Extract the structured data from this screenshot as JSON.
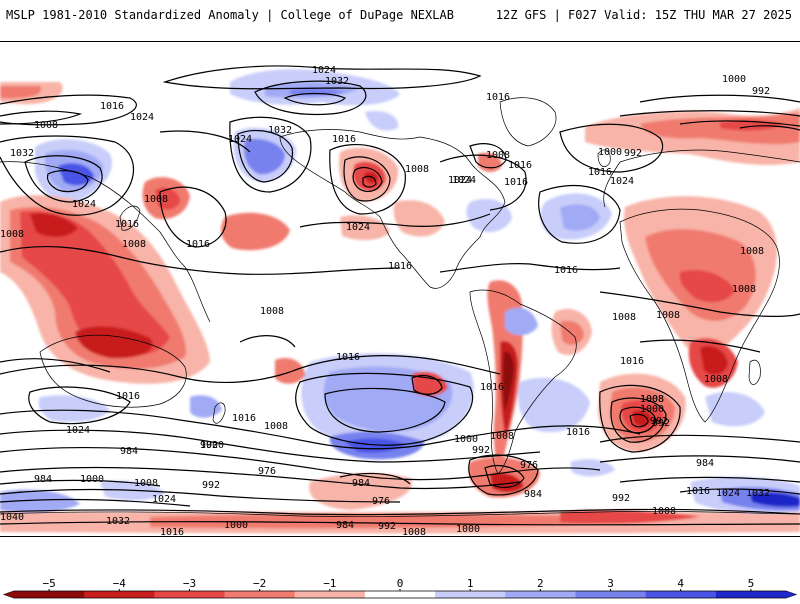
{
  "header": {
    "title_left": "MSLP 1981-2010 Standardized Anomaly | College of DuPage NEXLAB",
    "title_right": "12Z GFS | F027 Valid: 15Z THU MAR 27 2025"
  },
  "colors": {
    "neg5": "#8c0a0a",
    "neg4": "#c81e1e",
    "neg3": "#e64646",
    "neg2": "#f07a6e",
    "neg1": "#f8b4a8",
    "zero": "#ffffff",
    "pos1": "#c8cdfa",
    "pos2": "#a0aaf5",
    "pos3": "#7882ee",
    "pos4": "#4a55e6",
    "pos5": "#1e28c8",
    "contour": "#000000",
    "coast": "#000000"
  },
  "isobar_labels": [
    {
      "id": "l1",
      "text": "1024"
    },
    {
      "id": "l2",
      "text": "1032"
    },
    {
      "id": "l3",
      "text": "1016"
    },
    {
      "id": "l4",
      "text": "1024"
    },
    {
      "id": "l5",
      "text": "1008"
    },
    {
      "id": "l6",
      "text": "1032"
    },
    {
      "id": "l7",
      "text": "1024"
    },
    {
      "id": "l8",
      "text": "1032"
    },
    {
      "id": "l9",
      "text": "1016"
    },
    {
      "id": "l10",
      "text": "1008"
    },
    {
      "id": "l11",
      "text": "1016"
    },
    {
      "id": "l12",
      "text": "1024"
    },
    {
      "id": "l13",
      "text": "1008"
    },
    {
      "id": "l14",
      "text": "1016"
    },
    {
      "id": "l15",
      "text": "1008"
    },
    {
      "id": "l16",
      "text": "1016"
    },
    {
      "id": "l17",
      "text": "1024"
    },
    {
      "id": "l18",
      "text": "1016"
    },
    {
      "id": "l19",
      "text": "1008"
    },
    {
      "id": "l20",
      "text": "1024"
    },
    {
      "id": "l21",
      "text": "1016"
    },
    {
      "id": "l22",
      "text": "1016"
    },
    {
      "id": "l23",
      "text": "1008"
    },
    {
      "id": "l24",
      "text": "1008"
    },
    {
      "id": "l25",
      "text": "1016"
    },
    {
      "id": "l26",
      "text": "1016"
    },
    {
      "id": "l27",
      "text": "1024"
    },
    {
      "id": "l28",
      "text": "1024"
    },
    {
      "id": "l29",
      "text": "1000"
    },
    {
      "id": "l30",
      "text": "992"
    },
    {
      "id": "l31",
      "text": "1000"
    },
    {
      "id": "l32",
      "text": "992"
    },
    {
      "id": "l33",
      "text": "984"
    },
    {
      "id": "l34",
      "text": "984"
    },
    {
      "id": "l35",
      "text": "1000"
    },
    {
      "id": "l36",
      "text": "992"
    },
    {
      "id": "l37",
      "text": "1008"
    },
    {
      "id": "l38",
      "text": "1024"
    },
    {
      "id": "l39",
      "text": "976"
    },
    {
      "id": "l40",
      "text": "984"
    },
    {
      "id": "l41",
      "text": "976"
    },
    {
      "id": "l42",
      "text": "992"
    },
    {
      "id": "l43",
      "text": "1008"
    },
    {
      "id": "l44",
      "text": "1000"
    },
    {
      "id": "l45",
      "text": "992"
    },
    {
      "id": "l46",
      "text": "1000"
    },
    {
      "id": "l47",
      "text": "1008"
    },
    {
      "id": "l48",
      "text": "1016"
    },
    {
      "id": "l49",
      "text": "1016"
    },
    {
      "id": "l50",
      "text": "1008"
    },
    {
      "id": "l51",
      "text": "1008"
    },
    {
      "id": "l52",
      "text": "1008"
    },
    {
      "id": "l53",
      "text": "1008"
    },
    {
      "id": "l54",
      "text": "1016"
    },
    {
      "id": "l55",
      "text": "1040"
    },
    {
      "id": "l56",
      "text": "1032"
    },
    {
      "id": "l57",
      "text": "1016"
    },
    {
      "id": "l58",
      "text": "1000"
    },
    {
      "id": "l59",
      "text": "984"
    },
    {
      "id": "l60",
      "text": "992"
    },
    {
      "id": "l61",
      "text": "1008"
    },
    {
      "id": "l62",
      "text": "1000"
    },
    {
      "id": "l63",
      "text": "984"
    },
    {
      "id": "l64",
      "text": "976"
    },
    {
      "id": "l65",
      "text": "992"
    },
    {
      "id": "l66",
      "text": "984"
    },
    {
      "id": "l67",
      "text": "992"
    },
    {
      "id": "l68",
      "text": "1008"
    },
    {
      "id": "l69",
      "text": "1016"
    },
    {
      "id": "l70",
      "text": "1024"
    },
    {
      "id": "l71",
      "text": "1032"
    },
    {
      "id": "l72",
      "text": "1008"
    },
    {
      "id": "l73",
      "text": "1016"
    },
    {
      "id": "l74",
      "text": "1024"
    },
    {
      "id": "l75",
      "text": "1000"
    },
    {
      "id": "l76",
      "text": "992"
    },
    {
      "id": "l77",
      "text": "1008"
    },
    {
      "id": "l78",
      "text": "1016"
    },
    {
      "id": "l79",
      "text": "1008"
    },
    {
      "id": "l80",
      "text": "1016"
    }
  ],
  "colorbar": {
    "ticks": [
      {
        "value": -5,
        "label": "−5"
      },
      {
        "value": -4,
        "label": "−4"
      },
      {
        "value": -3,
        "label": "−3"
      },
      {
        "value": -2,
        "label": "−2"
      },
      {
        "value": -1,
        "label": "−1"
      },
      {
        "value": 0,
        "label": "0"
      },
      {
        "value": 1,
        "label": "1"
      },
      {
        "value": 2,
        "label": "2"
      },
      {
        "value": 3,
        "label": "3"
      },
      {
        "value": 4,
        "label": "4"
      },
      {
        "value": 5,
        "label": "5"
      }
    ],
    "range": [
      -5.5,
      5.5
    ],
    "step": 0.5
  }
}
